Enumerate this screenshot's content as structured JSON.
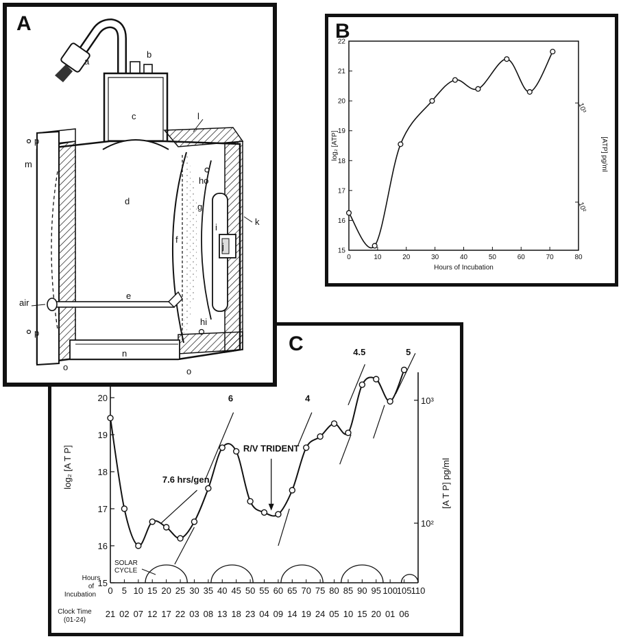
{
  "panels": {
    "a": {
      "letter": "A"
    },
    "b": {
      "letter": "B"
    },
    "c": {
      "letter": "C"
    }
  },
  "apparatus": {
    "labels": {
      "a": "a",
      "b": "b",
      "c": "c",
      "d": "d",
      "e": "e",
      "f": "f",
      "g": "g",
      "i": "i",
      "j": "j",
      "k": "k",
      "l": "l",
      "m": "m",
      "n": "n",
      "o_right": "o",
      "o_left": "o",
      "p_top": "p",
      "p_bottom": "p",
      "ho": "ho",
      "hi": "hi",
      "air": "air"
    }
  },
  "chart_data": [
    {
      "panel": "B",
      "type": "line",
      "xlabel": "Hours of Incubation",
      "ylabel": "log₂ [ATP]",
      "ylabel_right": "[ATP] pg/ml",
      "xlim": [
        0,
        80
      ],
      "ylim": [
        15,
        22
      ],
      "xticks": [
        0,
        10,
        20,
        30,
        40,
        50,
        60,
        70,
        80
      ],
      "yticks": [
        15,
        16,
        17,
        18,
        19,
        20,
        21,
        22
      ],
      "right_ticks": [
        {
          "label": "10²",
          "log2": 16.61
        },
        {
          "label": "10³",
          "log2": 19.93
        }
      ],
      "x": [
        0,
        9,
        18,
        29,
        37,
        45,
        55,
        63,
        71
      ],
      "y": [
        16.25,
        15.15,
        18.55,
        20.0,
        20.7,
        20.4,
        21.4,
        20.3,
        21.65
      ]
    },
    {
      "panel": "C",
      "type": "line",
      "xlabel": "Hours of Incubation",
      "ylabel": "log₂ [A T P]",
      "ylabel_right": "[A T P] pg/ml",
      "xlim": [
        0,
        110
      ],
      "ylim": [
        15,
        20.5
      ],
      "xticks": [
        0,
        5,
        10,
        15,
        20,
        25,
        30,
        35,
        40,
        45,
        50,
        55,
        60,
        65,
        70,
        75,
        80,
        85,
        90,
        95,
        100,
        105,
        110
      ],
      "yticks": [
        15,
        16,
        17,
        18,
        19,
        20
      ],
      "right_ticks": [
        {
          "label": "10²",
          "log2": 16.61
        },
        {
          "label": "10³",
          "log2": 19.93
        }
      ],
      "x": [
        0,
        5,
        10,
        15,
        20,
        25,
        30,
        35,
        40,
        45,
        50,
        55,
        60,
        65,
        70,
        75,
        80,
        85,
        90,
        95,
        100,
        105
      ],
      "y": [
        19.45,
        17.0,
        16.0,
        16.65,
        16.5,
        16.2,
        16.65,
        17.55,
        18.65,
        18.55,
        17.2,
        16.9,
        16.85,
        17.5,
        18.65,
        18.95,
        19.3,
        19.05,
        20.35,
        20.5,
        19.9,
        20.75
      ],
      "growth_labels": [
        {
          "text": "7.6 hrs/gen",
          "x": 27,
          "y": 17.7
        },
        {
          "text": "6",
          "x": 43,
          "y": 19.9
        },
        {
          "text": "4",
          "x": 70.5,
          "y": 19.9
        },
        {
          "text": "4.5",
          "x": 89,
          "y": 21.15
        },
        {
          "text": "5",
          "x": 106.5,
          "y": 21.15
        }
      ],
      "growth_lines": [
        [
          [
            18,
            16.6
          ],
          [
            31,
            17.5
          ]
        ],
        [
          [
            23,
            15.5
          ],
          [
            30,
            16.5
          ]
        ],
        [
          [
            34,
            17.8
          ],
          [
            44,
            19.6
          ]
        ],
        [
          [
            60,
            16.0
          ],
          [
            64,
            17.0
          ]
        ],
        [
          [
            67,
            18.7
          ],
          [
            72,
            19.6
          ]
        ],
        [
          [
            82,
            18.2
          ],
          [
            86,
            19.0
          ]
        ],
        [
          [
            85,
            19.8
          ],
          [
            91,
            20.9
          ]
        ],
        [
          [
            94,
            18.9
          ],
          [
            98,
            19.8
          ]
        ],
        [
          [
            102,
            20.1
          ],
          [
            109,
            21.2
          ]
        ]
      ],
      "annotation": {
        "text": "R/V TRIDENT",
        "x": 57.5,
        "arrow_to_y": 16.95
      },
      "solar_label": [
        "SOLAR",
        "CYCLE"
      ],
      "solar_arcs": [
        {
          "start": 12.5,
          "end": 27.5
        },
        {
          "start": 36,
          "end": 51
        },
        {
          "start": 61,
          "end": 76
        },
        {
          "start": 82.5,
          "end": 97.5
        },
        {
          "start": 104,
          "end": 110
        }
      ],
      "row_labels": {
        "hours": [
          "Hours",
          "of",
          "Incubation"
        ],
        "clock": [
          "Clock Time",
          "(01-24)"
        ]
      },
      "clock_times": [
        "21",
        "02",
        "07",
        "12",
        "17",
        "22",
        "03",
        "08",
        "13",
        "18",
        "23",
        "04",
        "09",
        "14",
        "19",
        "24",
        "05",
        "10",
        "15",
        "20",
        "01",
        "06"
      ]
    }
  ]
}
